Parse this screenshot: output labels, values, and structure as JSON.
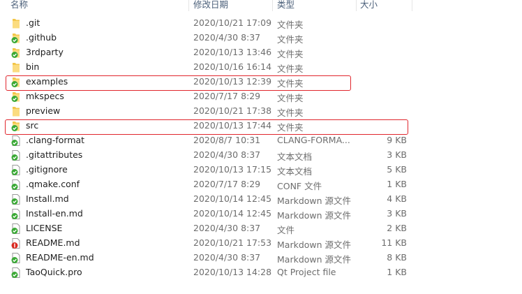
{
  "header": {
    "name": "名称",
    "date": "修改日期",
    "type": "类型",
    "size": "大小"
  },
  "files": [
    {
      "name": ".git",
      "date": "2020/10/21 17:09",
      "type": "文件夹",
      "size": "",
      "icon": "folder-icon",
      "status": "none"
    },
    {
      "name": ".github",
      "date": "2020/4/30 8:37",
      "type": "文件夹",
      "size": "",
      "icon": "folder-icon",
      "status": "synced"
    },
    {
      "name": "3rdparty",
      "date": "2020/10/13 13:46",
      "type": "文件夹",
      "size": "",
      "icon": "folder-icon",
      "status": "synced"
    },
    {
      "name": "bin",
      "date": "2020/10/16 16:14",
      "type": "文件夹",
      "size": "",
      "icon": "folder-icon",
      "status": "none"
    },
    {
      "name": "examples",
      "date": "2020/10/13 12:39",
      "type": "文件夹",
      "size": "",
      "icon": "folder-icon",
      "status": "synced",
      "highlighted": true
    },
    {
      "name": "mkspecs",
      "date": "2020/7/17 8:29",
      "type": "文件夹",
      "size": "",
      "icon": "folder-icon",
      "status": "synced"
    },
    {
      "name": "preview",
      "date": "2020/10/21 17:38",
      "type": "文件夹",
      "size": "",
      "icon": "folder-icon",
      "status": "none"
    },
    {
      "name": "src",
      "date": "2020/10/13 17:44",
      "type": "文件夹",
      "size": "",
      "icon": "folder-icon",
      "status": "synced",
      "highlighted": true
    },
    {
      "name": ".clang-format",
      "date": "2020/8/7 10:31",
      "type": "CLANG-FORMA...",
      "size": "9 KB",
      "icon": "file-icon",
      "status": "synced"
    },
    {
      "name": ".gitattributes",
      "date": "2020/4/30 8:37",
      "type": "文本文档",
      "size": "3 KB",
      "icon": "file-icon",
      "status": "synced"
    },
    {
      "name": ".gitignore",
      "date": "2020/10/13 17:15",
      "type": "文本文档",
      "size": "5 KB",
      "icon": "file-icon",
      "status": "synced"
    },
    {
      "name": ".qmake.conf",
      "date": "2020/7/17 8:29",
      "type": "CONF 文件",
      "size": "1 KB",
      "icon": "file-icon",
      "status": "synced"
    },
    {
      "name": "Install.md",
      "date": "2020/10/14 12:45",
      "type": "Markdown 源文件",
      "size": "4 KB",
      "icon": "file-icon",
      "status": "synced"
    },
    {
      "name": "Install-en.md",
      "date": "2020/10/14 12:45",
      "type": "Markdown 源文件",
      "size": "3 KB",
      "icon": "file-icon",
      "status": "synced"
    },
    {
      "name": "LICENSE",
      "date": "2020/4/30 8:37",
      "type": "文件",
      "size": "2 KB",
      "icon": "file-icon",
      "status": "synced"
    },
    {
      "name": "README.md",
      "date": "2020/10/21 17:53",
      "type": "Markdown 源文件",
      "size": "11 KB",
      "icon": "file-icon",
      "status": "modified"
    },
    {
      "name": "README-en.md",
      "date": "2020/4/30 8:37",
      "type": "Markdown 源文件",
      "size": "8 KB",
      "icon": "file-icon",
      "status": "synced"
    },
    {
      "name": "TaoQuick.pro",
      "date": "2020/10/13 14:28",
      "type": "Qt Project file",
      "size": "1 KB",
      "icon": "qt-project-icon",
      "status": "synced"
    }
  ],
  "colors": {
    "highlight": "#e0262d",
    "synced": "#3aa935",
    "modified": "#d9281f",
    "folder": "#f3c64a"
  }
}
